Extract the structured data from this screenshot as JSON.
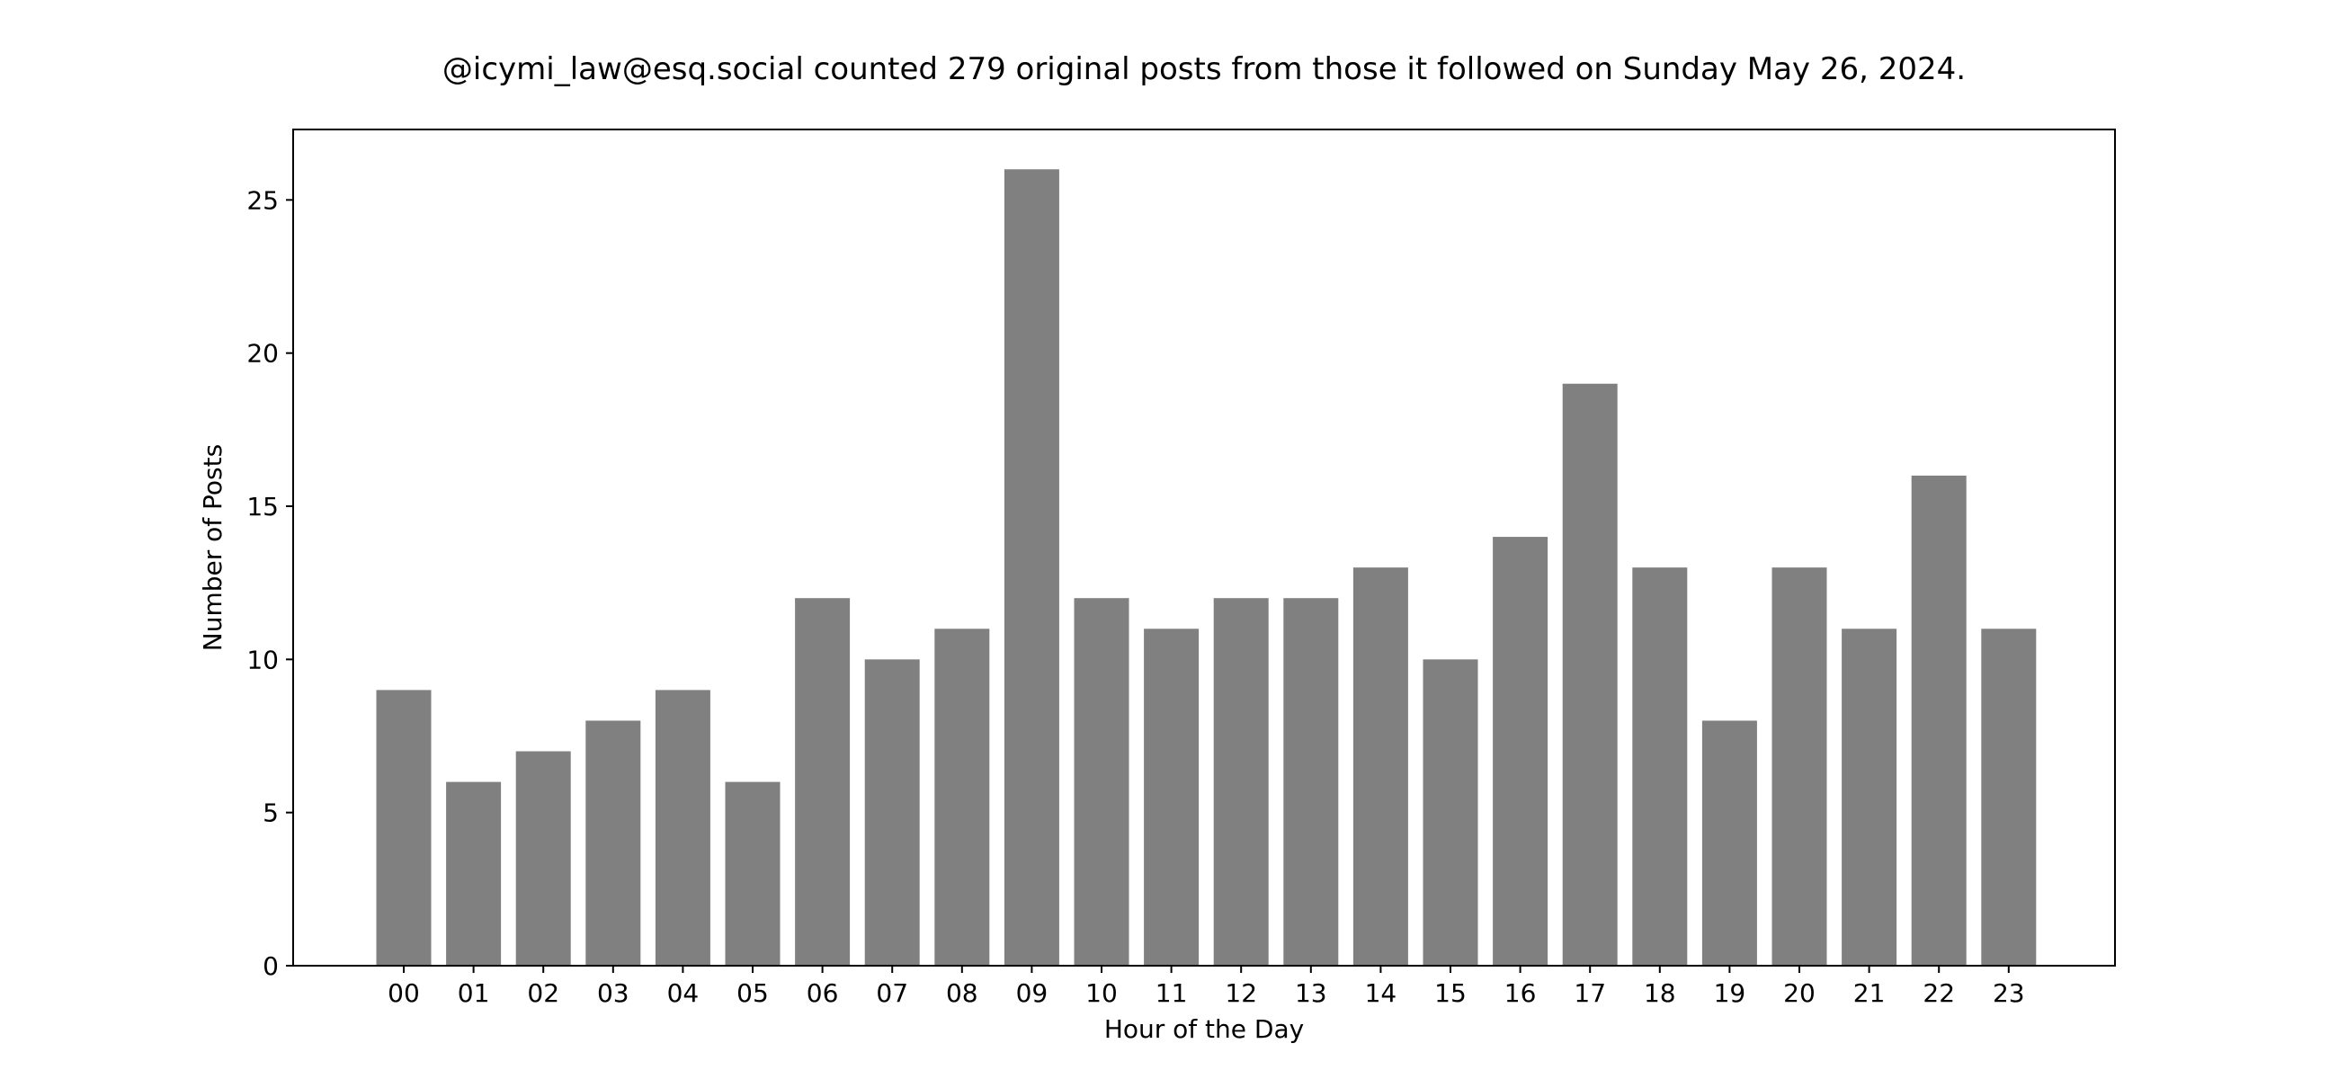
{
  "chart_data": {
    "type": "bar",
    "title": "@icymi_law@esq.social counted 279 original posts from those it followed on Sunday May 26, 2024.",
    "xlabel": "Hour of the Day",
    "ylabel": "Number of Posts",
    "categories": [
      "00",
      "01",
      "02",
      "03",
      "04",
      "05",
      "06",
      "07",
      "08",
      "09",
      "10",
      "11",
      "12",
      "13",
      "14",
      "15",
      "16",
      "17",
      "18",
      "19",
      "20",
      "21",
      "22",
      "23"
    ],
    "values": [
      9,
      6,
      7,
      8,
      9,
      6,
      12,
      10,
      11,
      26,
      12,
      11,
      12,
      12,
      13,
      10,
      14,
      19,
      13,
      8,
      13,
      11,
      16,
      11
    ],
    "ylim": [
      0,
      27.3
    ],
    "yticks": [
      0,
      5,
      10,
      15,
      20,
      25
    ],
    "bar_color": "#808080",
    "grid": false,
    "legend": "none"
  }
}
